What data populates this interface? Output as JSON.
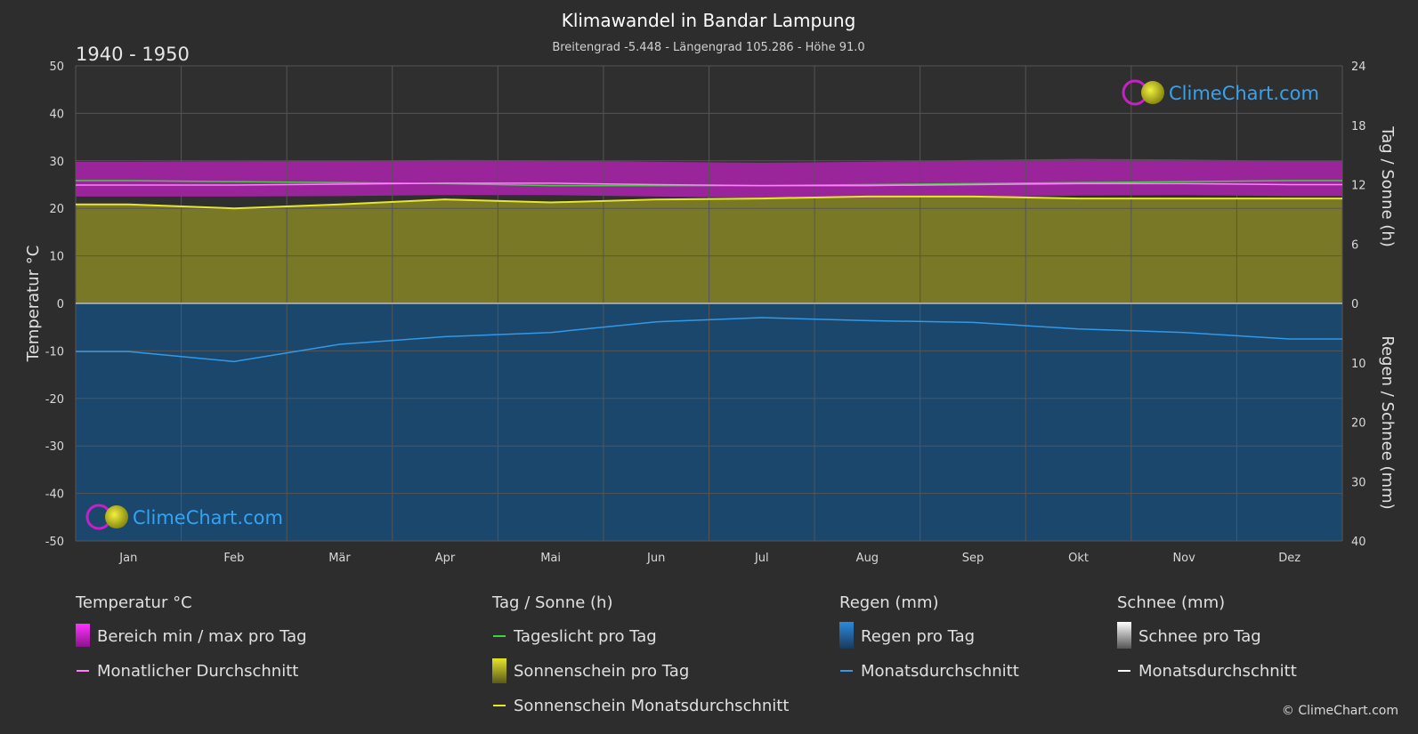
{
  "header": {
    "title": "Klimawandel in Bandar Lampung",
    "subtitle": "Breitengrad -5.448 - Längengrad 105.286 - Höhe 91.0",
    "period": "1940 - 1950"
  },
  "axes": {
    "left_label": "Temperatur °C",
    "right_top_label": "Tag / Sonne (h)",
    "right_bottom_label": "Regen / Schnee (mm)",
    "left_ticks": [
      "50",
      "40",
      "30",
      "20",
      "10",
      "0",
      "-10",
      "-20",
      "-30",
      "-40",
      "-50"
    ],
    "right_top_ticks": [
      "24",
      "18",
      "12",
      "6",
      "0"
    ],
    "right_bottom_ticks": [
      "10",
      "20",
      "30",
      "40"
    ],
    "months": [
      "Jan",
      "Feb",
      "Mär",
      "Apr",
      "Mai",
      "Jun",
      "Jul",
      "Aug",
      "Sep",
      "Okt",
      "Nov",
      "Dez"
    ]
  },
  "legend": {
    "temp": {
      "head": "Temperatur °C",
      "range": "Bereich min / max pro Tag",
      "avg": "Monatlicher Durchschnitt"
    },
    "sun": {
      "head": "Tag / Sonne (h)",
      "daylight": "Tageslicht pro Tag",
      "sunshine": "Sonnenschein pro Tag",
      "sun_avg": "Sonnenschein Monatsdurchschnitt"
    },
    "rain": {
      "head": "Regen (mm)",
      "rain_day": "Regen pro Tag",
      "rain_avg": "Monatsdurchschnitt"
    },
    "snow": {
      "head": "Schnee (mm)",
      "snow_day": "Schnee pro Tag",
      "snow_avg": "Monatsdurchschnitt"
    }
  },
  "branding": {
    "logo_text": "ClimeChart.com",
    "copyright": "© ClimeChart.com"
  },
  "colors": {
    "background": "#2d2d2d",
    "temp_range": "#c81fc8",
    "temp_avg": "#ff7fff",
    "daylight": "#3fd13f",
    "sunshine_fill": "#8a8a2a",
    "sunshine_avg": "#e6e62a",
    "rain_fill": "#1f5f96",
    "rain_avg": "#3399e6",
    "snow_avg": "#ffffff",
    "brand": "#35a3f0"
  },
  "chart_data": {
    "type": "area",
    "categories": [
      "Jan",
      "Feb",
      "Mär",
      "Apr",
      "Mai",
      "Jun",
      "Jul",
      "Aug",
      "Sep",
      "Okt",
      "Nov",
      "Dez"
    ],
    "temp_axis_range": [
      -50,
      50
    ],
    "sun_axis_range": [
      0,
      24
    ],
    "precip_axis_range": [
      0,
      40
    ],
    "series": [
      {
        "legend": "Bereich min / max pro Tag",
        "unit": "°C",
        "min": [
          22.5,
          22.5,
          22.6,
          22.8,
          22.8,
          22.5,
          22.2,
          22.2,
          22.4,
          22.7,
          22.8,
          22.6
        ],
        "max": [
          29.8,
          29.9,
          30.0,
          30.2,
          30.1,
          29.8,
          29.6,
          29.8,
          30.2,
          30.4,
          30.3,
          30.0
        ]
      },
      {
        "legend": "Monatlicher Durchschnitt",
        "unit": "°C",
        "values": [
          24.9,
          24.9,
          25.1,
          25.3,
          25.3,
          25.0,
          24.8,
          24.8,
          25.0,
          25.2,
          25.2,
          25.0
        ]
      },
      {
        "legend": "Tageslicht pro Tag",
        "unit": "h",
        "values": [
          12.4,
          12.3,
          12.2,
          12.1,
          11.9,
          11.9,
          11.9,
          12.0,
          12.1,
          12.2,
          12.3,
          12.4
        ]
      },
      {
        "legend": "Sonnenschein Monatsdurchschnitt",
        "unit": "h",
        "values": [
          10.0,
          9.6,
          10.0,
          10.5,
          10.2,
          10.5,
          10.6,
          10.8,
          10.8,
          10.6,
          10.6,
          10.6
        ]
      },
      {
        "legend": "Regen Monatsdurchschnitt",
        "unit": "mm",
        "values": [
          8.1,
          9.8,
          6.9,
          5.6,
          4.9,
          3.1,
          2.4,
          2.9,
          3.2,
          4.3,
          4.9,
          6.0
        ]
      },
      {
        "legend": "Schnee Monatsdurchschnitt",
        "unit": "mm",
        "values": [
          0,
          0,
          0,
          0,
          0,
          0,
          0,
          0,
          0,
          0,
          0,
          0
        ]
      }
    ]
  }
}
